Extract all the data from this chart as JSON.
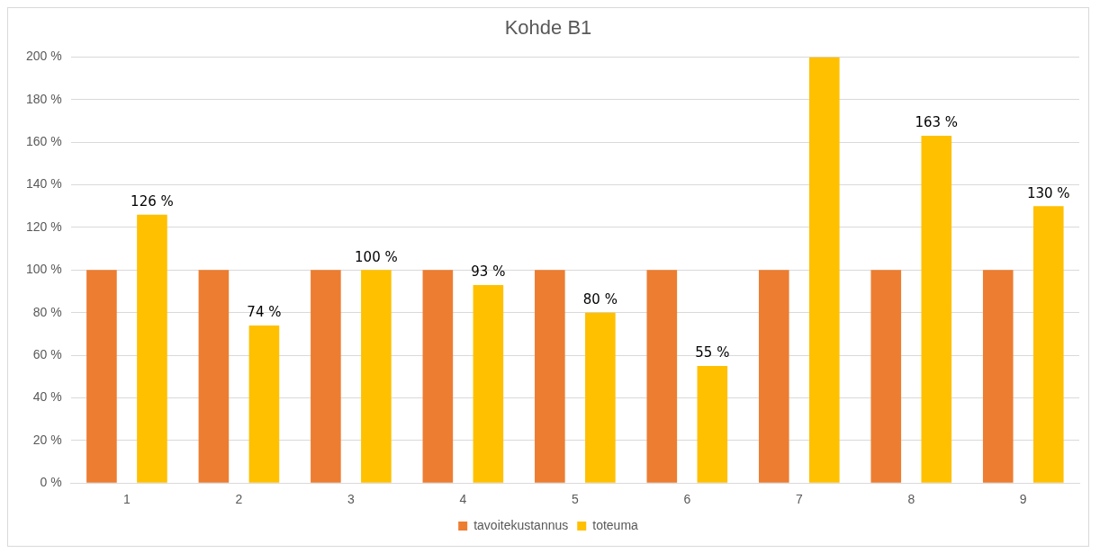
{
  "chart_data": {
    "type": "bar",
    "title": "Kohde B1",
    "categories": [
      "1",
      "2",
      "3",
      "4",
      "5",
      "6",
      "7",
      "8",
      "9"
    ],
    "series": [
      {
        "name": "tavoitekustannus",
        "color": "#ed7d31",
        "values": [
          100,
          100,
          100,
          100,
          100,
          100,
          100,
          100,
          100
        ]
      },
      {
        "name": "toteuma",
        "color": "#ffc000",
        "values": [
          126,
          74,
          100,
          93,
          80,
          55,
          200,
          163,
          130
        ],
        "value_labels": [
          "126 %",
          "74 %",
          "100 %",
          "93 %",
          "80 %",
          "55 %",
          null,
          "163 %",
          "130 %"
        ]
      }
    ],
    "ylim": [
      0,
      200
    ],
    "yticks": [
      {
        "value": 0,
        "label": "0 %"
      },
      {
        "value": 20,
        "label": "20 %"
      },
      {
        "value": 40,
        "label": "40 %"
      },
      {
        "value": 60,
        "label": "60 %"
      },
      {
        "value": 80,
        "label": "80 %"
      },
      {
        "value": 100,
        "label": "100 %"
      },
      {
        "value": 120,
        "label": "120 %"
      },
      {
        "value": 140,
        "label": "140 %"
      },
      {
        "value": 160,
        "label": "160 %"
      },
      {
        "value": 180,
        "label": "180 %"
      },
      {
        "value": 200,
        "label": "200 %"
      }
    ],
    "grid": "y",
    "legend": "bottom"
  }
}
